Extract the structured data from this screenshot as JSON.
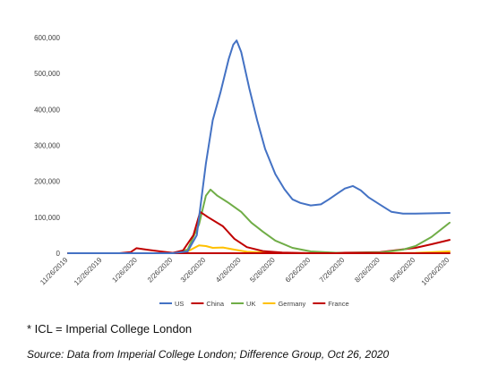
{
  "chart_data": {
    "type": "line",
    "title": "",
    "xlabel": "",
    "ylabel": "",
    "x_ticks": [
      "11/26/2019",
      "12/26/2019",
      "1/26/2020",
      "2/26/2020",
      "3/26/2020",
      "4/26/2020",
      "5/26/2020",
      "6/26/2020",
      "7/26/2020",
      "8/26/2020",
      "9/26/2020",
      "10/26/2020"
    ],
    "y_ticks": [
      "0",
      "100,000",
      "200,000",
      "300,000",
      "400,000",
      "500,000",
      "600,000"
    ],
    "ylim": [
      0,
      600000
    ],
    "grid": false,
    "legend_position": "bottom",
    "series": [
      {
        "name": "US",
        "color": "#4472C4",
        "points": [
          [
            "11/26/2019",
            0
          ],
          [
            "1/26/2020",
            0
          ],
          [
            "2/26/2020",
            0
          ],
          [
            "3/10/2020",
            5000
          ],
          [
            "3/18/2020",
            50000
          ],
          [
            "3/26/2020",
            250000
          ],
          [
            "4/1/2020",
            370000
          ],
          [
            "4/8/2020",
            450000
          ],
          [
            "4/15/2020",
            540000
          ],
          [
            "4/19/2020",
            580000
          ],
          [
            "4/22/2020",
            592000
          ],
          [
            "4/26/2020",
            560000
          ],
          [
            "5/3/2020",
            460000
          ],
          [
            "5/10/2020",
            370000
          ],
          [
            "5/17/2020",
            290000
          ],
          [
            "5/26/2020",
            220000
          ],
          [
            "6/3/2020",
            178000
          ],
          [
            "6/10/2020",
            150000
          ],
          [
            "6/17/2020",
            140000
          ],
          [
            "6/26/2020",
            133000
          ],
          [
            "7/5/2020",
            136000
          ],
          [
            "7/12/2020",
            150000
          ],
          [
            "7/19/2020",
            165000
          ],
          [
            "7/26/2020",
            180000
          ],
          [
            "8/2/2020",
            187000
          ],
          [
            "8/9/2020",
            175000
          ],
          [
            "8/16/2020",
            155000
          ],
          [
            "8/26/2020",
            135000
          ],
          [
            "9/5/2020",
            115000
          ],
          [
            "9/15/2020",
            110000
          ],
          [
            "9/26/2020",
            110000
          ],
          [
            "10/26/2020",
            112000
          ]
        ]
      },
      {
        "name": "China",
        "color": "#C00000",
        "points": [
          [
            "11/26/2019",
            0
          ],
          [
            "1/10/2020",
            0
          ],
          [
            "1/20/2020",
            3000
          ],
          [
            "1/25/2020",
            14000
          ],
          [
            "2/5/2020",
            9000
          ],
          [
            "2/15/2020",
            5000
          ],
          [
            "2/26/2020",
            1000
          ],
          [
            "3/6/2020",
            8000
          ],
          [
            "3/15/2020",
            50000
          ],
          [
            "3/21/2020",
            115000
          ],
          [
            "3/28/2020",
            100000
          ],
          [
            "4/10/2020",
            75000
          ],
          [
            "4/20/2020",
            40000
          ],
          [
            "5/1/2020",
            17000
          ],
          [
            "5/15/2020",
            6000
          ],
          [
            "6/1/2020",
            2000
          ],
          [
            "6/26/2020",
            0
          ],
          [
            "10/26/2020",
            0
          ]
        ]
      },
      {
        "name": "UK",
        "color": "#70AD47",
        "points": [
          [
            "11/26/2019",
            0
          ],
          [
            "2/26/2020",
            0
          ],
          [
            "3/10/2020",
            10000
          ],
          [
            "3/20/2020",
            80000
          ],
          [
            "3/26/2020",
            160000
          ],
          [
            "3/30/2020",
            177000
          ],
          [
            "4/5/2020",
            160000
          ],
          [
            "4/15/2020",
            140000
          ],
          [
            "4/26/2020",
            115000
          ],
          [
            "5/5/2020",
            85000
          ],
          [
            "5/15/2020",
            60000
          ],
          [
            "5/26/2020",
            35000
          ],
          [
            "6/10/2020",
            15000
          ],
          [
            "6/26/2020",
            5000
          ],
          [
            "7/26/2020",
            0
          ],
          [
            "8/26/2020",
            2000
          ],
          [
            "9/15/2020",
            10000
          ],
          [
            "9/26/2020",
            20000
          ],
          [
            "10/10/2020",
            45000
          ],
          [
            "10/26/2020",
            85000
          ]
        ]
      },
      {
        "name": "Germany",
        "color": "#FFC000",
        "points": [
          [
            "11/26/2019",
            0
          ],
          [
            "2/26/2020",
            0
          ],
          [
            "3/10/2020",
            5000
          ],
          [
            "3/20/2020",
            22000
          ],
          [
            "3/26/2020",
            20000
          ],
          [
            "4/1/2020",
            15000
          ],
          [
            "4/10/2020",
            16000
          ],
          [
            "4/20/2020",
            10000
          ],
          [
            "5/1/2020",
            4000
          ],
          [
            "5/26/2020",
            1000
          ],
          [
            "6/26/2020",
            0
          ],
          [
            "9/26/2020",
            1000
          ],
          [
            "10/26/2020",
            5000
          ]
        ]
      },
      {
        "name": "France",
        "color": "#C00000",
        "points": [
          [
            "11/26/2019",
            0
          ],
          [
            "6/26/2020",
            0
          ],
          [
            "8/26/2020",
            3000
          ],
          [
            "9/26/2020",
            15000
          ],
          [
            "10/10/2020",
            25000
          ],
          [
            "10/26/2020",
            37000
          ]
        ]
      }
    ]
  },
  "footnote": "* ICL = Imperial College London",
  "source": "Source: Data from Imperial College London; Difference Group, Oct 26, 2020"
}
